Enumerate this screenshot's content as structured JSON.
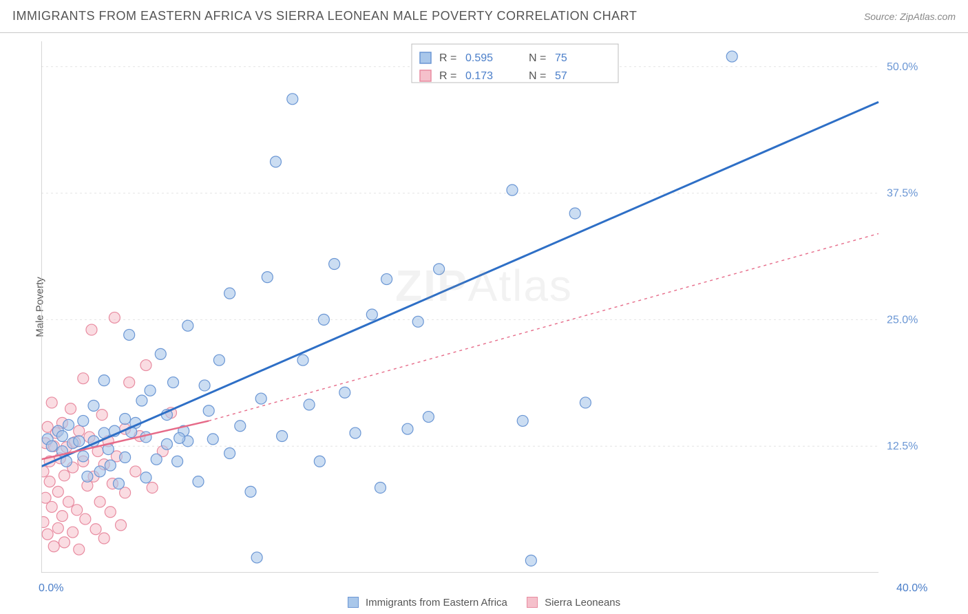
{
  "title": "IMMIGRANTS FROM EASTERN AFRICA VS SIERRA LEONEAN MALE POVERTY CORRELATION CHART",
  "source": "Source: ZipAtlas.com",
  "yaxis_label": "Male Poverty",
  "watermark": "ZIPAtlas",
  "xlim": [
    0.0,
    40.0
  ],
  "ylim": [
    0.0,
    52.5
  ],
  "xtick_corner_left": "0.0%",
  "xtick_corner_right": "40.0%",
  "xtick_corner_color": "#4a7ec9",
  "ytick_labels": [
    "12.5%",
    "25.0%",
    "37.5%",
    "50.0%"
  ],
  "ytick_values": [
    12.5,
    25.0,
    37.5,
    50.0
  ],
  "ytick_color": "#6a96d4",
  "xtick_inner_values": [
    10.0,
    20.0,
    30.0
  ],
  "grid_color": "#e4e4e4",
  "axis_color": "#c8c8c8",
  "background_color": "#ffffff",
  "series": [
    {
      "name": "Immigrants from Eastern Africa",
      "color_fill": "#a9c7ea",
      "color_stroke": "#6a96d4",
      "line_color": "#2e6fc6",
      "line_width": 3,
      "line_dash": "none",
      "marker_radius": 8,
      "marker_opacity": 0.6,
      "R": "0.595",
      "N": "75",
      "regression": {
        "x1": 0.0,
        "y1": 10.5,
        "x2": 40.0,
        "y2": 46.5
      },
      "points": [
        [
          0.3,
          13.2
        ],
        [
          0.5,
          12.5
        ],
        [
          0.8,
          14.0
        ],
        [
          1.0,
          12.0
        ],
        [
          1.0,
          13.5
        ],
        [
          1.2,
          11.0
        ],
        [
          1.3,
          14.6
        ],
        [
          1.5,
          12.8
        ],
        [
          1.8,
          13.0
        ],
        [
          2.0,
          11.5
        ],
        [
          2.0,
          15.0
        ],
        [
          2.2,
          9.5
        ],
        [
          2.5,
          13.0
        ],
        [
          2.5,
          16.5
        ],
        [
          2.8,
          10.0
        ],
        [
          3.0,
          13.8
        ],
        [
          3.0,
          19.0
        ],
        [
          3.2,
          12.2
        ],
        [
          3.5,
          14.0
        ],
        [
          3.7,
          8.8
        ],
        [
          4.0,
          15.2
        ],
        [
          4.0,
          11.4
        ],
        [
          4.2,
          23.5
        ],
        [
          4.5,
          14.8
        ],
        [
          4.8,
          17.0
        ],
        [
          5.0,
          9.4
        ],
        [
          5.0,
          13.4
        ],
        [
          5.2,
          18.0
        ],
        [
          5.5,
          11.2
        ],
        [
          5.7,
          21.6
        ],
        [
          6.0,
          15.6
        ],
        [
          6.0,
          12.7
        ],
        [
          6.3,
          18.8
        ],
        [
          6.5,
          11.0
        ],
        [
          6.8,
          14.0
        ],
        [
          7.0,
          24.4
        ],
        [
          7.0,
          13.0
        ],
        [
          7.5,
          9.0
        ],
        [
          7.8,
          18.5
        ],
        [
          8.0,
          16.0
        ],
        [
          8.2,
          13.2
        ],
        [
          8.5,
          21.0
        ],
        [
          9.0,
          11.8
        ],
        [
          9.0,
          27.6
        ],
        [
          9.5,
          14.5
        ],
        [
          10.0,
          8.0
        ],
        [
          10.5,
          17.2
        ],
        [
          10.8,
          29.2
        ],
        [
          11.2,
          40.6
        ],
        [
          11.5,
          13.5
        ],
        [
          12.0,
          46.8
        ],
        [
          12.5,
          21.0
        ],
        [
          12.8,
          16.6
        ],
        [
          13.3,
          11.0
        ],
        [
          13.5,
          25.0
        ],
        [
          14.0,
          30.5
        ],
        [
          14.5,
          17.8
        ],
        [
          15.0,
          13.8
        ],
        [
          15.8,
          25.5
        ],
        [
          16.2,
          8.4
        ],
        [
          16.5,
          29.0
        ],
        [
          17.5,
          14.2
        ],
        [
          18.0,
          24.8
        ],
        [
          18.5,
          15.4
        ],
        [
          19.0,
          30.0
        ],
        [
          22.5,
          37.8
        ],
        [
          23.0,
          15.0
        ],
        [
          25.5,
          35.5
        ],
        [
          26.0,
          16.8
        ],
        [
          33.0,
          51.0
        ],
        [
          10.3,
          1.5
        ],
        [
          23.4,
          1.2
        ],
        [
          4.3,
          13.9
        ],
        [
          6.6,
          13.3
        ],
        [
          3.3,
          10.6
        ]
      ]
    },
    {
      "name": "Sierra Leoneans",
      "color_fill": "#f5c0cb",
      "color_stroke": "#e88ba0",
      "line_color": "#e66a88",
      "line_width": 2.5,
      "line_dash": "4,5",
      "marker_radius": 8,
      "marker_opacity": 0.55,
      "R": "0.173",
      "N": "57",
      "regression_solid": {
        "x1": 0.0,
        "y1": 11.2,
        "x2": 8.0,
        "y2": 15.0
      },
      "regression_dashed": {
        "x1": 8.0,
        "y1": 15.0,
        "x2": 40.0,
        "y2": 33.5
      },
      "points": [
        [
          0.1,
          10.0
        ],
        [
          0.1,
          5.0
        ],
        [
          0.2,
          12.8
        ],
        [
          0.2,
          7.4
        ],
        [
          0.3,
          14.4
        ],
        [
          0.3,
          3.8
        ],
        [
          0.4,
          11.0
        ],
        [
          0.4,
          9.0
        ],
        [
          0.5,
          16.8
        ],
        [
          0.5,
          6.5
        ],
        [
          0.6,
          12.5
        ],
        [
          0.6,
          2.6
        ],
        [
          0.7,
          13.8
        ],
        [
          0.8,
          8.0
        ],
        [
          0.8,
          4.4
        ],
        [
          0.9,
          11.3
        ],
        [
          1.0,
          14.8
        ],
        [
          1.0,
          5.6
        ],
        [
          1.1,
          9.6
        ],
        [
          1.1,
          3.0
        ],
        [
          1.2,
          12.4
        ],
        [
          1.3,
          7.0
        ],
        [
          1.4,
          16.2
        ],
        [
          1.5,
          10.4
        ],
        [
          1.5,
          4.0
        ],
        [
          1.6,
          12.9
        ],
        [
          1.7,
          6.2
        ],
        [
          1.8,
          14.0
        ],
        [
          1.8,
          2.3
        ],
        [
          2.0,
          11.0
        ],
        [
          2.0,
          19.2
        ],
        [
          2.1,
          5.3
        ],
        [
          2.2,
          8.6
        ],
        [
          2.3,
          13.4
        ],
        [
          2.4,
          24.0
        ],
        [
          2.5,
          9.5
        ],
        [
          2.6,
          4.3
        ],
        [
          2.7,
          12.0
        ],
        [
          2.8,
          7.0
        ],
        [
          2.9,
          15.6
        ],
        [
          3.0,
          10.7
        ],
        [
          3.0,
          3.4
        ],
        [
          3.2,
          13.0
        ],
        [
          3.3,
          6.0
        ],
        [
          3.4,
          8.8
        ],
        [
          3.5,
          25.2
        ],
        [
          3.6,
          11.5
        ],
        [
          3.8,
          4.7
        ],
        [
          4.0,
          14.2
        ],
        [
          4.0,
          7.9
        ],
        [
          4.2,
          18.8
        ],
        [
          4.5,
          10.0
        ],
        [
          4.7,
          13.5
        ],
        [
          5.0,
          20.5
        ],
        [
          5.3,
          8.4
        ],
        [
          5.8,
          12.0
        ],
        [
          6.2,
          15.8
        ]
      ]
    }
  ],
  "legend_box": {
    "border_color": "#bcbcbc",
    "bg_color": "#ffffff",
    "label_R": "R =",
    "label_N": "N =",
    "value_color": "#4a7ec9"
  },
  "bottom_legend": {
    "items": [
      {
        "swatch_fill": "#a9c7ea",
        "swatch_stroke": "#6a96d4",
        "label": "Immigrants from Eastern Africa"
      },
      {
        "swatch_fill": "#f5c0cb",
        "swatch_stroke": "#e88ba0",
        "label": "Sierra Leoneans"
      }
    ]
  }
}
